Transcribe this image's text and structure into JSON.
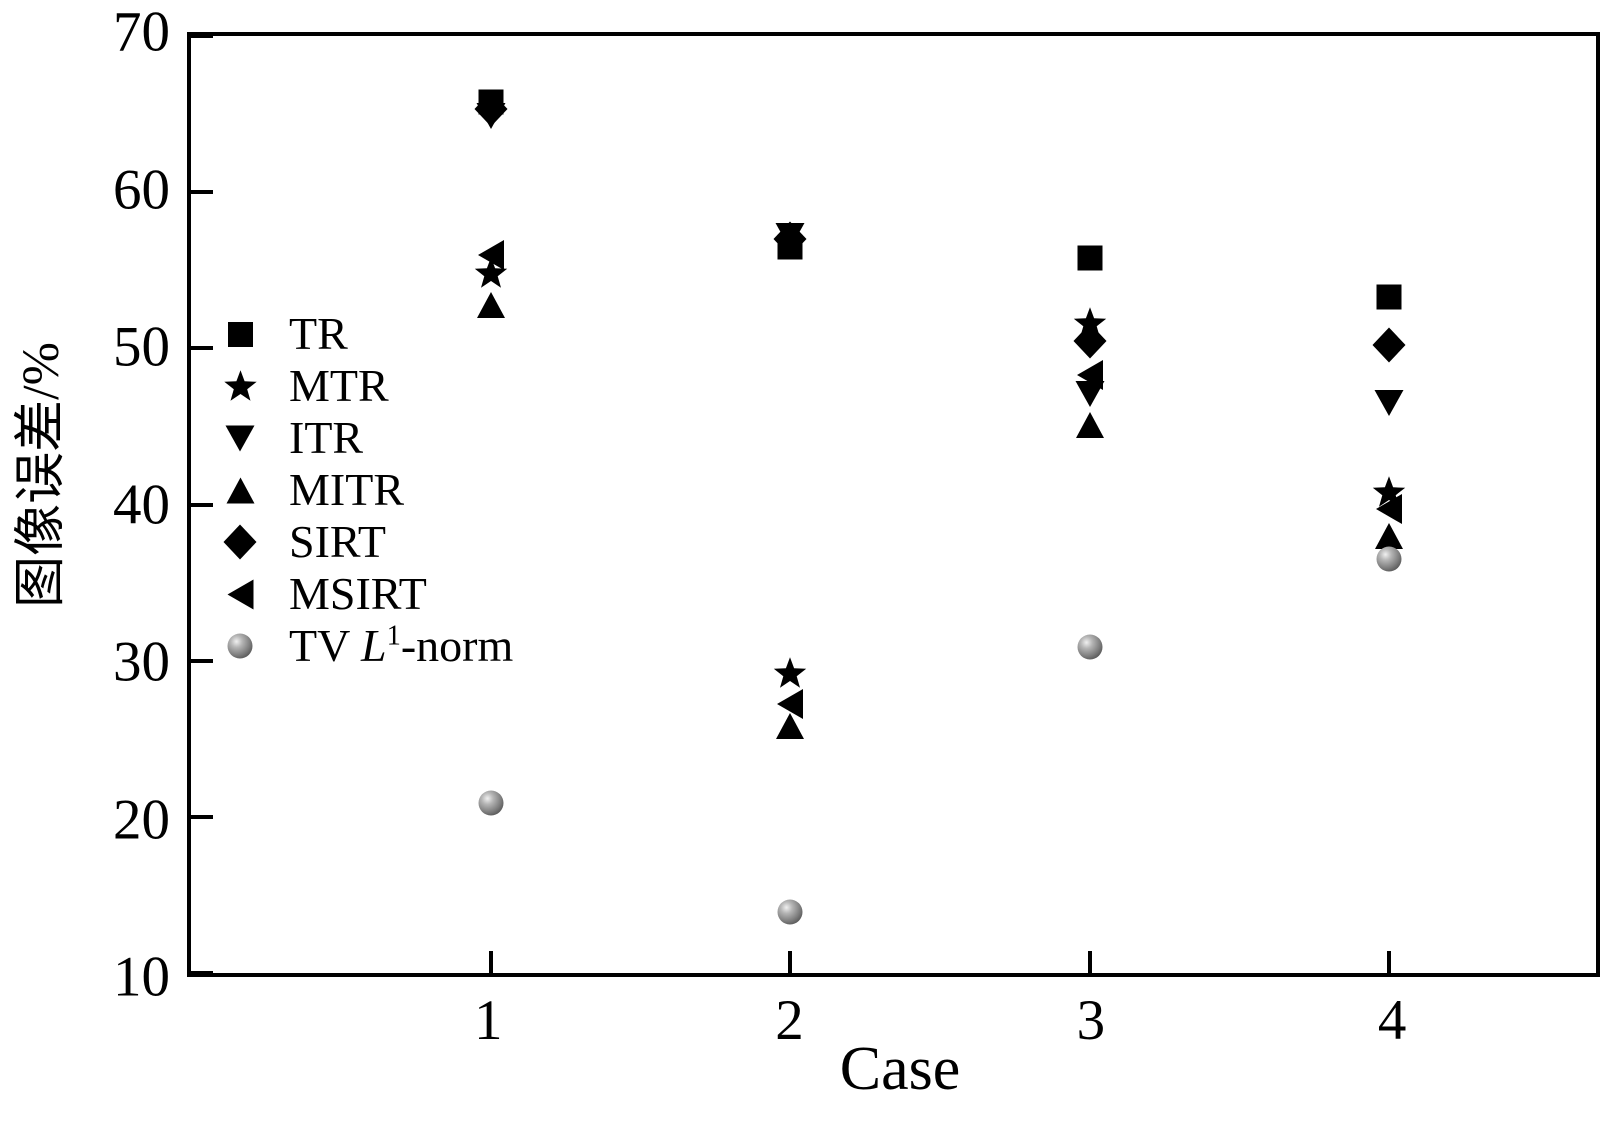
{
  "figure": {
    "background": "#ffffff",
    "axis_color": "#000000",
    "marker_color": "#000000",
    "sphere_colors": {
      "highlight": "#f0f0f0",
      "mid": "#9a9a9a",
      "rim": "#4f4f4f"
    }
  },
  "chart_data": {
    "type": "scatter",
    "title": "",
    "xlabel": "Case",
    "ylabel": "图像误差/%",
    "x": [
      1,
      2,
      3,
      4
    ],
    "xlim": [
      0,
      4.69
    ],
    "ylim": [
      10,
      70
    ],
    "xticks": [
      1,
      2,
      3,
      4
    ],
    "yticks": [
      70,
      60,
      50,
      40,
      30,
      20,
      10
    ],
    "grid": false,
    "legend_position": "upper-left-inside",
    "series": [
      {
        "name": "TR",
        "marker": "square",
        "color": "#000000",
        "values": [
          65.8,
          56.5,
          55.8,
          53.3
        ]
      },
      {
        "name": "MTR",
        "marker": "star",
        "color": "#000000",
        "values": [
          54.8,
          29.2,
          51.6,
          40.8
        ]
      },
      {
        "name": "ITR",
        "marker": "triangle-down",
        "color": "#000000",
        "values": [
          64.9,
          57.2,
          47.1,
          46.5
        ]
      },
      {
        "name": "MITR",
        "marker": "triangle-up",
        "color": "#000000",
        "values": [
          52.8,
          25.8,
          45.1,
          38.0
        ]
      },
      {
        "name": "SIRT",
        "marker": "diamond",
        "color": "#000000",
        "values": [
          65.3,
          57.0,
          50.5,
          50.2
        ]
      },
      {
        "name": "MSIRT",
        "marker": "triangle-left",
        "color": "#000000",
        "values": [
          56.0,
          27.2,
          48.3,
          39.7
        ]
      },
      {
        "name": "TV L1-norm",
        "marker": "sphere",
        "color": "gradient-gray",
        "values": [
          20.9,
          13.9,
          30.9,
          36.5
        ],
        "label_parts": {
          "pre": "TV ",
          "variable": "L",
          "superscript": "1",
          "post": "-norm"
        }
      }
    ]
  }
}
